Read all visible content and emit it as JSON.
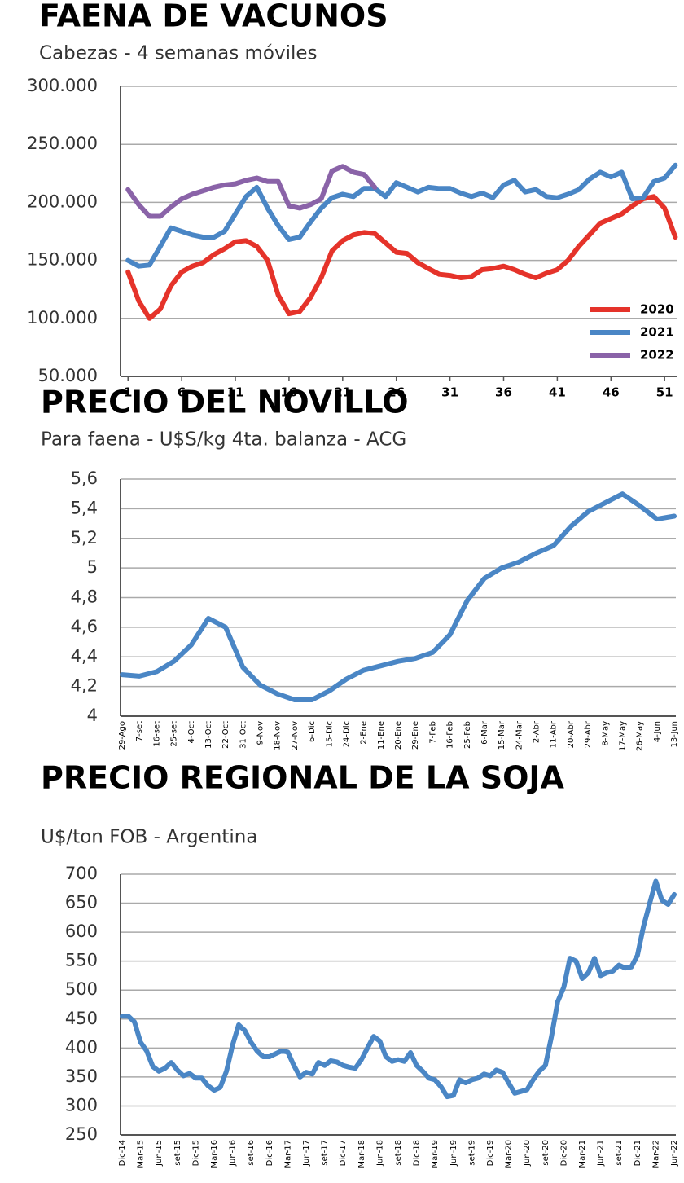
{
  "chart_data": [
    {
      "type": "line",
      "title": "FAENA DE VACUNOS",
      "subtitle": "Cabezas - 4 semanas móviles",
      "x": [
        1,
        2,
        3,
        4,
        5,
        6,
        7,
        8,
        9,
        10,
        11,
        12,
        13,
        14,
        15,
        16,
        17,
        18,
        19,
        20,
        21,
        22,
        23,
        24,
        25,
        26,
        27,
        28,
        29,
        30,
        31,
        32,
        33,
        34,
        35,
        36,
        37,
        38,
        39,
        40,
        41,
        42,
        43,
        44,
        45,
        46,
        47,
        48,
        49,
        50,
        51,
        52
      ],
      "xlim": [
        0.3,
        52.2
      ],
      "xticks": [
        1,
        6,
        11,
        16,
        21,
        26,
        31,
        36,
        41,
        46,
        51
      ],
      "ylim": [
        50000,
        300000
      ],
      "yticks": [
        {
          "value": 50000,
          "label": "50.000"
        },
        {
          "value": 100000,
          "label": "100.000"
        },
        {
          "value": 150000,
          "label": "150.000"
        },
        {
          "value": 200000,
          "label": "200.000"
        },
        {
          "value": 250000,
          "label": "250.000"
        },
        {
          "value": 300000,
          "label": "300.000"
        }
      ],
      "grid": true,
      "legend": "lower right",
      "series": [
        {
          "name": "2020",
          "color": "#e5332a",
          "values": [
            140000,
            115000,
            100000,
            108000,
            128000,
            140000,
            145000,
            148000,
            155000,
            160000,
            166000,
            167000,
            162000,
            150000,
            120000,
            104000,
            106000,
            118000,
            135000,
            158000,
            167000,
            172000,
            174000,
            173000,
            165000,
            157000,
            156000,
            148000,
            143000,
            138000,
            137000,
            135000,
            136000,
            142000,
            143000,
            145000,
            142000,
            138000,
            135000,
            139000,
            142000,
            150000,
            162000,
            172000,
            182000,
            186000,
            190000,
            197000,
            203000,
            205000,
            195000,
            170000
          ]
        },
        {
          "name": "2021",
          "color": "#4a86c5",
          "values": [
            150000,
            145000,
            146000,
            162000,
            178000,
            175000,
            172000,
            170000,
            170000,
            175000,
            190000,
            205000,
            213000,
            195000,
            180000,
            168000,
            170000,
            183000,
            195000,
            204000,
            207000,
            205000,
            212000,
            212000,
            205000,
            217000,
            213000,
            209000,
            213000,
            212000,
            212000,
            208000,
            205000,
            208000,
            204000,
            215000,
            219000,
            209000,
            211000,
            205000,
            204000,
            207000,
            211000,
            220000,
            226000,
            222000,
            226000,
            203000,
            204000,
            218000,
            221000,
            232000
          ]
        },
        {
          "name": "2022",
          "color": "#8a63a8",
          "values": [
            211000,
            198000,
            188000,
            188000,
            196000,
            203000,
            207000,
            210000,
            213000,
            215000,
            216000,
            219000,
            221000,
            218000,
            218000,
            197000,
            195000,
            198000,
            203000,
            227000,
            231000,
            226000,
            224000,
            213000,
            null,
            null,
            null,
            null,
            null,
            null,
            null,
            null,
            null,
            null,
            null,
            null,
            null,
            null,
            null,
            null,
            null,
            null,
            null,
            null,
            null,
            null,
            null,
            null,
            null,
            null,
            null,
            null
          ]
        }
      ]
    },
    {
      "type": "line",
      "title": "PRECIO DEL NOVILLO",
      "subtitle": "Para faena - U$S/kg 4ta. balanza - ACG",
      "categories": [
        "29-Ago",
        "7-set",
        "16-set",
        "25-set",
        "4-Oct",
        "13-Oct",
        "22-Oct",
        "31-Oct",
        "9-Nov",
        "18-Nov",
        "27-Nov",
        "6-Dic",
        "15-Dic",
        "24-Dic",
        "2-Ene",
        "11-Ene",
        "20-Ene",
        "29-Ene",
        "7-Feb",
        "16-Feb",
        "25-Feb",
        "6-Mar",
        "15-Mar",
        "24-Mar",
        "2-Abr",
        "11-Abr",
        "20-Abr",
        "29-Abr",
        "8-May",
        "17-May",
        "26-May",
        "4-Jun",
        "13-Jun"
      ],
      "values": [
        4.28,
        4.27,
        4.3,
        4.37,
        4.48,
        4.66,
        4.6,
        4.33,
        4.21,
        4.15,
        4.11,
        4.11,
        4.17,
        4.25,
        4.31,
        4.34,
        4.37,
        4.39,
        4.43,
        4.55,
        4.78,
        4.93,
        5.0,
        5.04,
        5.1,
        5.15,
        5.28,
        5.38,
        5.44,
        5.5,
        5.42,
        5.33,
        5.35
      ],
      "color": "#4a86c5",
      "ylim": [
        4,
        5.6
      ],
      "yticks": [
        4,
        {
          "value": 4.2,
          "label": "4,2"
        },
        {
          "value": 4.4,
          "label": "4,4"
        },
        {
          "value": 4.6,
          "label": "4,6"
        },
        {
          "value": 4.8,
          "label": "4,8"
        },
        5,
        {
          "value": 5.2,
          "label": "5,2"
        },
        {
          "value": 5.4,
          "label": "5,4"
        },
        {
          "value": 5.6,
          "label": "5,6"
        }
      ],
      "grid": true
    },
    {
      "type": "line",
      "title": "PRECIO REGIONAL DE LA SOJA",
      "subtitle": "U$/ton FOB - Argentina",
      "categories": [
        "Dic-14",
        null,
        null,
        "Mar-15",
        null,
        null,
        "Jun-15",
        null,
        null,
        "set-15",
        null,
        null,
        "Dic-15",
        null,
        null,
        "Mar-16",
        null,
        null,
        "Jun-16",
        null,
        null,
        "set-16",
        null,
        null,
        "Dic-16",
        null,
        null,
        "Mar-17",
        null,
        null,
        "Jun-17",
        null,
        null,
        "set-17",
        null,
        null,
        "Dic-17",
        null,
        null,
        "Mar-18",
        null,
        null,
        "Jun-18",
        null,
        null,
        "set-18",
        null,
        null,
        "Dic-18",
        null,
        null,
        "Mar-19",
        null,
        null,
        "Jun-19",
        null,
        null,
        "set-19",
        null,
        null,
        "Dic-19",
        null,
        null,
        "Mar-20",
        null,
        null,
        "Jun-20",
        null,
        null,
        "set-20",
        null,
        null,
        "Dic-20",
        null,
        null,
        "Mar-21",
        null,
        null,
        "Jun-21",
        null,
        null,
        "set-21",
        null,
        null,
        "Dic-21",
        null,
        null,
        "Mar-22",
        null,
        null,
        "Jun-22"
      ],
      "values": [
        455,
        455,
        445,
        410,
        395,
        368,
        360,
        365,
        375,
        362,
        352,
        356,
        348,
        348,
        335,
        327,
        332,
        360,
        405,
        440,
        430,
        410,
        395,
        385,
        385,
        390,
        395,
        393,
        370,
        350,
        358,
        355,
        375,
        370,
        378,
        376,
        370,
        367,
        365,
        380,
        400,
        420,
        412,
        385,
        377,
        380,
        377,
        392,
        370,
        360,
        348,
        345,
        333,
        316,
        318,
        345,
        340,
        345,
        348,
        355,
        352,
        362,
        358,
        340,
        322,
        325,
        328,
        345,
        360,
        370,
        420,
        480,
        505,
        555,
        550,
        520,
        530,
        555,
        525,
        530,
        533,
        543,
        538,
        540,
        560,
        610,
        650,
        688,
        655,
        648,
        665
      ],
      "color": "#4a86c5",
      "ylim": [
        250,
        700
      ],
      "yticks": [
        250,
        300,
        350,
        400,
        450,
        500,
        550,
        600,
        650,
        700
      ],
      "grid": true
    }
  ]
}
